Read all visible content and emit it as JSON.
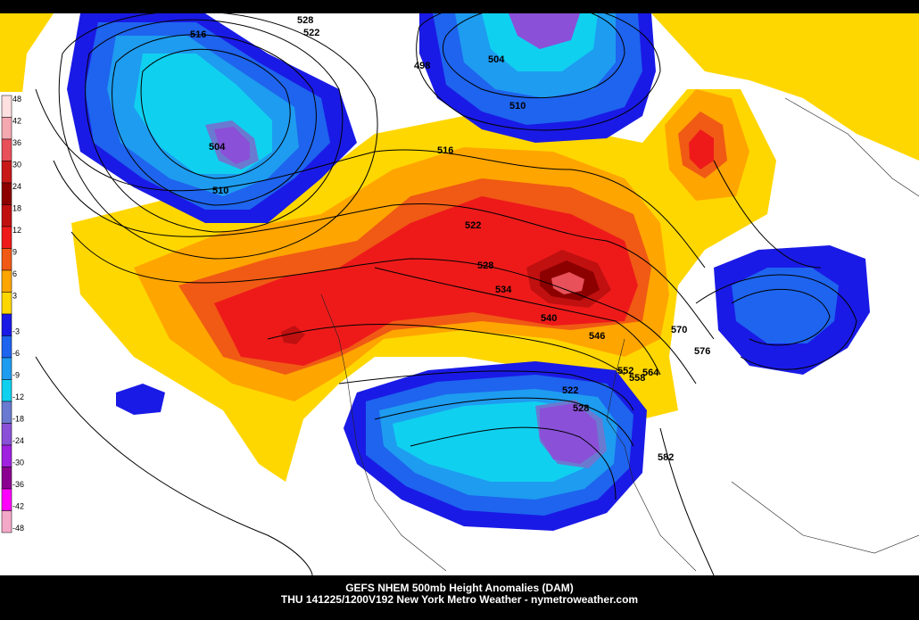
{
  "caption": {
    "line1": "GEFS NHEM 500mb Height Anomalies (DAM)",
    "line2": "THU 141225/1200V192 New York Metro Weather - nymetroweather.com"
  },
  "colorbar": {
    "positive": [
      {
        "label": "48",
        "color": "#ffe0e0"
      },
      {
        "label": "42",
        "color": "#f4a8b0"
      },
      {
        "label": "36",
        "color": "#e8505a"
      },
      {
        "label": "30",
        "color": "#c81818"
      },
      {
        "label": "24",
        "color": "#8c0000"
      },
      {
        "label": "18",
        "color": "#c01010"
      },
      {
        "label": "12",
        "color": "#ee1a1a"
      },
      {
        "label": "9",
        "color": "#f05a14"
      },
      {
        "label": "6",
        "color": "#ffa500"
      },
      {
        "label": "3",
        "color": "#ffd700"
      }
    ],
    "negative": [
      {
        "label": "-3",
        "color": "#1a1ae6"
      },
      {
        "label": "-6",
        "color": "#1e64ee"
      },
      {
        "label": "-9",
        "color": "#1e9cf0"
      },
      {
        "label": "-12",
        "color": "#10d0f0"
      },
      {
        "label": "-18",
        "color": "#6a7ad0"
      },
      {
        "label": "-24",
        "color": "#8a50d8"
      },
      {
        "label": "-30",
        "color": "#a020e0"
      },
      {
        "label": "-36",
        "color": "#8a0090"
      },
      {
        "label": "-42",
        "color": "#ff00ff"
      },
      {
        "label": "-48",
        "color": "#f4a8c8"
      }
    ]
  },
  "contour_labels": [
    "528",
    "522",
    "516",
    "504",
    "510",
    "516",
    "504",
    "510",
    "522",
    "528",
    "534",
    "540",
    "546",
    "552",
    "558",
    "564",
    "570",
    "576",
    "522",
    "528",
    "582",
    "498"
  ]
}
